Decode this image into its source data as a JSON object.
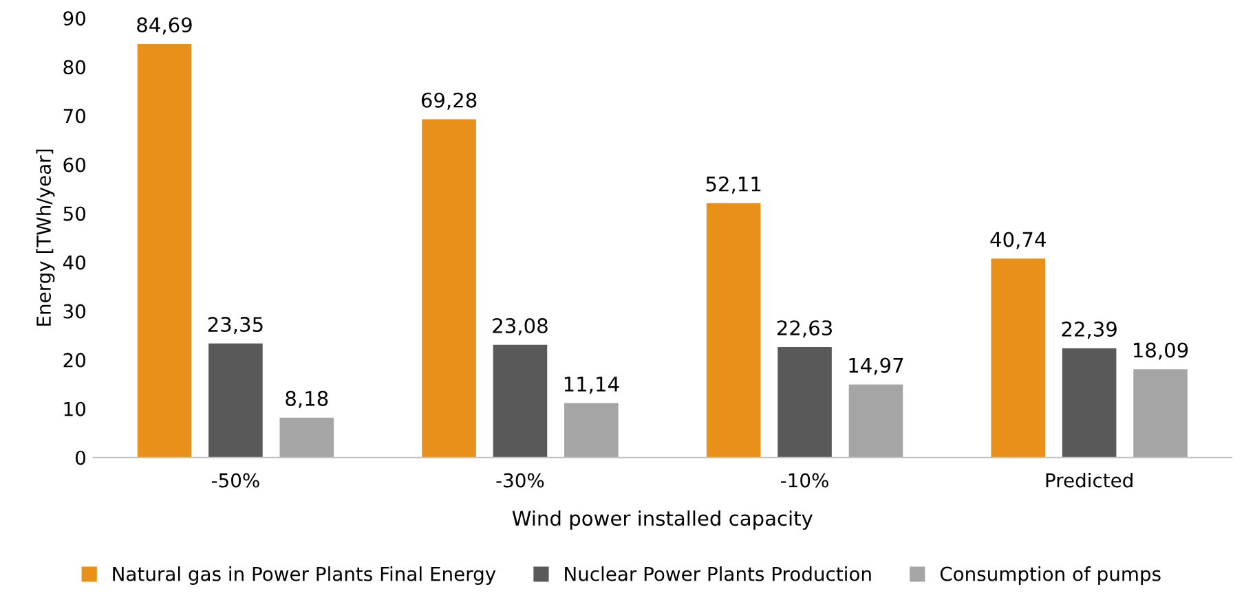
{
  "chart_data": {
    "type": "bar",
    "xlabel": "Wind power installed capacity",
    "ylabel": "Energy [TWh/year]",
    "categories": [
      "-50%",
      "-30%",
      "-10%",
      "Predicted"
    ],
    "series": [
      {
        "name": "Natural gas in Power Plants Final Energy",
        "color": "#e8901a",
        "values": [
          84.69,
          69.28,
          52.11,
          40.74
        ],
        "value_labels": [
          "84,69",
          "69,28",
          "52,11",
          "40,74"
        ]
      },
      {
        "name": "Nuclear Power Plants Production",
        "color": "#595959",
        "values": [
          23.35,
          23.08,
          22.63,
          22.39
        ],
        "value_labels": [
          "23,35",
          "23,08",
          "22,63",
          "22,39"
        ]
      },
      {
        "name": "Consumption of pumps",
        "color": "#a5a5a5",
        "values": [
          8.18,
          11.14,
          14.97,
          18.09
        ],
        "value_labels": [
          "8,18",
          "11,14",
          "14,97",
          "18,09"
        ]
      }
    ],
    "ylim": [
      0,
      90
    ],
    "yticks": [
      0,
      10,
      20,
      30,
      40,
      50,
      60,
      70,
      80,
      90
    ],
    "grid": false,
    "legend": "bottom"
  }
}
